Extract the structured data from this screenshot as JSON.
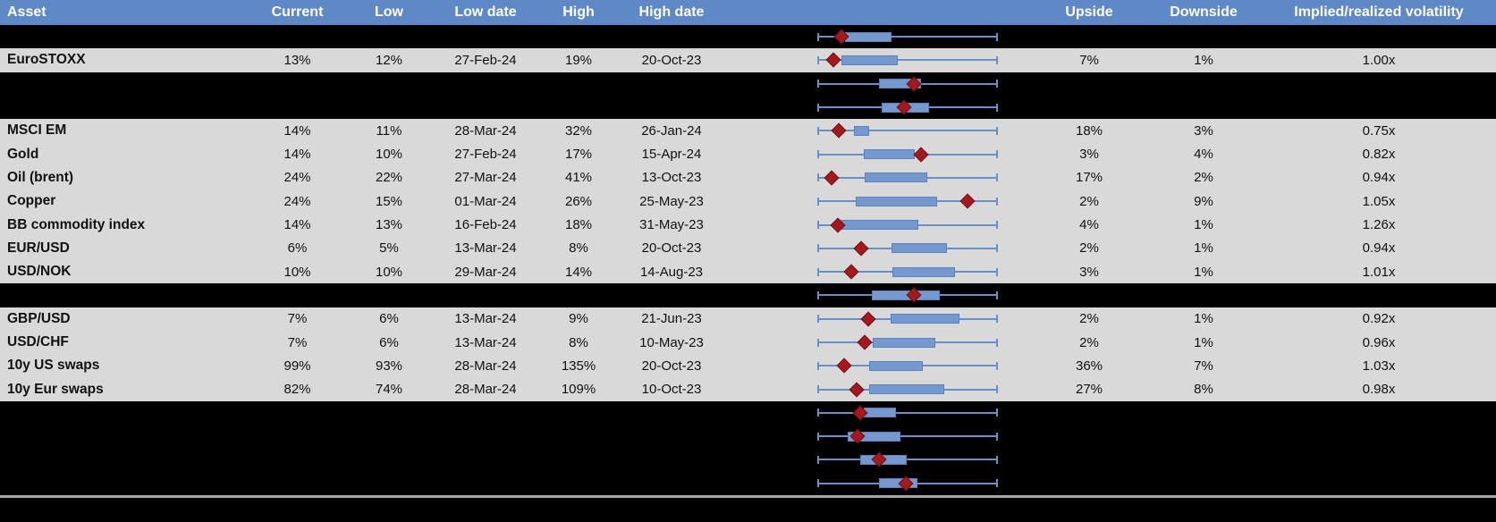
{
  "header": {
    "columns": {
      "asset": "Asset",
      "current": "Current",
      "low": "Low",
      "low_date": "Low date",
      "high": "High",
      "high_date": "High date",
      "upside": "Upside",
      "downside": "Downside",
      "vol": "Implied/realized volatility"
    }
  },
  "colors": {
    "header_bg": "#5f88c6",
    "header_text": "#ffffff",
    "data_row_bg": "#d9d9d9",
    "hidden_row_bg": "#000000",
    "cell_text": "#111111",
    "whisker": "#6890c8",
    "box_fill": "#7599cf",
    "box_border": "#5a82bd",
    "diamond_fill": "#a3191e",
    "diamond_border": "#6e1114",
    "divider": "#a6a6a6"
  },
  "boxplot_scale_note": "box q1/q3 and marker are fractions 0-1 of the whisker span (whiskers run full span on every row)",
  "rows": [
    {
      "type": "hidden",
      "box": {
        "lo": 0,
        "q1": 0.153,
        "q3": 0.411,
        "marker": 0.134,
        "hi": 1
      }
    },
    {
      "type": "data",
      "asset": "EuroSTOXX",
      "current": "13%",
      "low": "12%",
      "low_date": "27-Feb-24",
      "high": "19%",
      "high_date": "20-Oct-23",
      "upside": "7%",
      "downside": "1%",
      "vol": "1.00x",
      "box": {
        "lo": 0,
        "q1": 0.134,
        "q3": 0.446,
        "marker": 0.089,
        "hi": 1
      }
    },
    {
      "type": "hidden",
      "box": {
        "lo": 0,
        "q1": 0.342,
        "q3": 0.574,
        "marker": 0.535,
        "hi": 1
      }
    },
    {
      "type": "hidden",
      "box": {
        "lo": 0,
        "q1": 0.356,
        "q3": 0.619,
        "marker": 0.48,
        "hi": 1
      }
    },
    {
      "type": "data",
      "asset": "MSCI EM",
      "current": "14%",
      "low": "11%",
      "low_date": "28-Mar-24",
      "high": "32%",
      "high_date": "26-Jan-24",
      "upside": "18%",
      "downside": "3%",
      "vol": "0.75x",
      "box": {
        "lo": 0,
        "q1": 0.203,
        "q3": 0.287,
        "marker": 0.119,
        "hi": 1
      }
    },
    {
      "type": "data",
      "asset": "Gold",
      "current": "14%",
      "low": "10%",
      "low_date": "27-Feb-24",
      "high": "17%",
      "high_date": "15-Apr-24",
      "upside": "3%",
      "downside": "4%",
      "vol": "0.82x",
      "box": {
        "lo": 0,
        "q1": 0.257,
        "q3": 0.54,
        "marker": 0.574,
        "hi": 1
      }
    },
    {
      "type": "data",
      "asset": "Oil (brent)",
      "current": "24%",
      "low": "22%",
      "low_date": "27-Mar-24",
      "high": "41%",
      "high_date": "13-Oct-23",
      "upside": "17%",
      "downside": "2%",
      "vol": "0.94x",
      "box": {
        "lo": 0,
        "q1": 0.262,
        "q3": 0.609,
        "marker": 0.079,
        "hi": 1
      }
    },
    {
      "type": "data",
      "asset": "Copper",
      "current": "24%",
      "low": "15%",
      "low_date": "01-Mar-24",
      "high": "26%",
      "high_date": "25-May-23",
      "upside": "2%",
      "downside": "9%",
      "vol": "1.05x",
      "box": {
        "lo": 0,
        "q1": 0.213,
        "q3": 0.663,
        "marker": 0.832,
        "hi": 1
      }
    },
    {
      "type": "data",
      "asset": "BB commodity index",
      "current": "14%",
      "low": "13%",
      "low_date": "16-Feb-24",
      "high": "18%",
      "high_date": "31-May-23",
      "upside": "4%",
      "downside": "1%",
      "vol": "1.26x",
      "box": {
        "lo": 0,
        "q1": 0.119,
        "q3": 0.559,
        "marker": 0.114,
        "hi": 1
      }
    },
    {
      "type": "data",
      "asset": "EUR/USD",
      "current": "6%",
      "low": "5%",
      "low_date": "13-Mar-24",
      "high": "8%",
      "high_date": "20-Oct-23",
      "upside": "2%",
      "downside": "1%",
      "vol": "0.94x",
      "box": {
        "lo": 0,
        "q1": 0.411,
        "q3": 0.718,
        "marker": 0.242,
        "hi": 1
      }
    },
    {
      "type": "data",
      "asset": "USD/NOK",
      "current": "10%",
      "low": "10%",
      "low_date": "29-Mar-24",
      "high": "14%",
      "high_date": "14-Aug-23",
      "upside": "3%",
      "downside": "1%",
      "vol": "1.01x",
      "box": {
        "lo": 0,
        "q1": 0.416,
        "q3": 0.762,
        "marker": 0.188,
        "hi": 1
      }
    },
    {
      "type": "hidden",
      "box": {
        "lo": 0,
        "q1": 0.302,
        "q3": 0.678,
        "marker": 0.535,
        "hi": 1
      }
    },
    {
      "type": "data",
      "asset": "GBP/USD",
      "current": "7%",
      "low": "6%",
      "low_date": "13-Mar-24",
      "high": "9%",
      "high_date": "21-Jun-23",
      "upside": "2%",
      "downside": "1%",
      "vol": "0.92x",
      "box": {
        "lo": 0,
        "q1": 0.406,
        "q3": 0.787,
        "marker": 0.282,
        "hi": 1
      }
    },
    {
      "type": "data",
      "asset": "USD/CHF",
      "current": "7%",
      "low": "6%",
      "low_date": "13-Mar-24",
      "high": "8%",
      "high_date": "10-May-23",
      "upside": "2%",
      "downside": "1%",
      "vol": "0.96x",
      "box": {
        "lo": 0,
        "q1": 0.307,
        "q3": 0.653,
        "marker": 0.262,
        "hi": 1
      }
    },
    {
      "type": "data",
      "asset": "10y US swaps",
      "current": "99%",
      "low": "93%",
      "low_date": "28-Mar-24",
      "high": "135%",
      "high_date": "20-Oct-23",
      "upside": "36%",
      "downside": "7%",
      "vol": "1.03x",
      "box": {
        "lo": 0,
        "q1": 0.287,
        "q3": 0.584,
        "marker": 0.149,
        "hi": 1
      }
    },
    {
      "type": "data",
      "asset": "10y Eur swaps",
      "current": "82%",
      "low": "74%",
      "low_date": "28-Mar-24",
      "high": "109%",
      "high_date": "10-Oct-23",
      "upside": "27%",
      "downside": "8%",
      "vol": "0.98x",
      "box": {
        "lo": 0,
        "q1": 0.287,
        "q3": 0.703,
        "marker": 0.218,
        "hi": 1
      }
    },
    {
      "type": "hidden",
      "box": {
        "lo": 0,
        "q1": 0.257,
        "q3": 0.436,
        "marker": 0.238,
        "hi": 1
      }
    },
    {
      "type": "hidden",
      "box": {
        "lo": 0,
        "q1": 0.168,
        "q3": 0.46,
        "marker": 0.223,
        "hi": 1
      }
    },
    {
      "type": "hidden",
      "box": {
        "lo": 0,
        "q1": 0.238,
        "q3": 0.495,
        "marker": 0.342,
        "hi": 1
      }
    },
    {
      "type": "hidden",
      "box": {
        "lo": 0,
        "q1": 0.342,
        "q3": 0.554,
        "marker": 0.49,
        "hi": 1
      }
    }
  ]
}
